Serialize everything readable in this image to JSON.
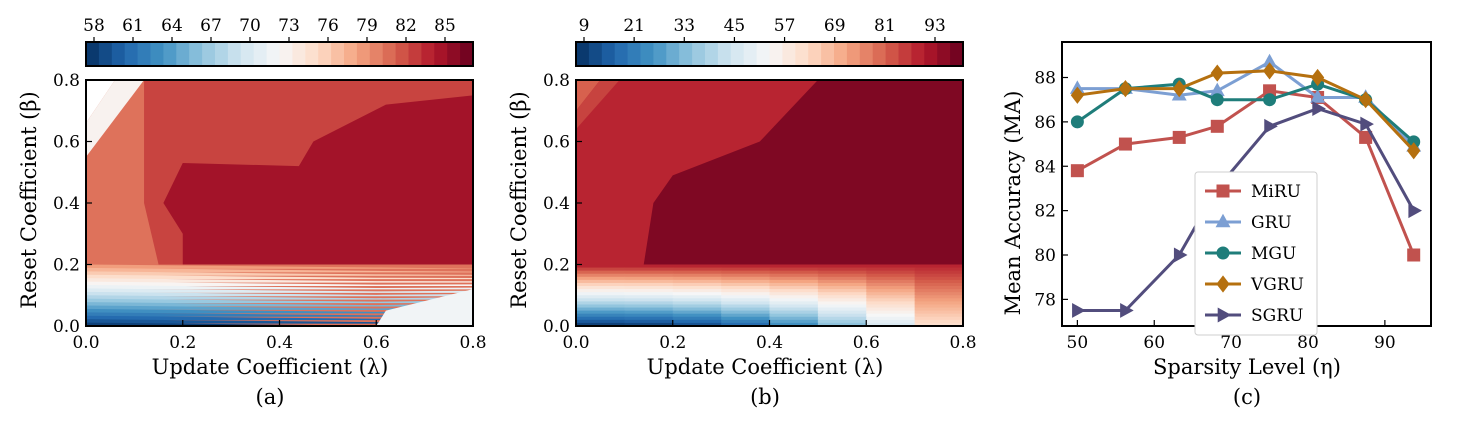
{
  "chart_data": [
    {
      "type": "heatmap",
      "panel": "(a)",
      "xlabel": "Update Coefficient (λ)",
      "ylabel": "Reset Coefficient (β)",
      "xlim": [
        0.0,
        0.8
      ],
      "ylim": [
        0.0,
        0.8
      ],
      "x_ticks": [
        "0.0",
        "0.2",
        "0.4",
        "0.6",
        "0.8"
      ],
      "y_ticks": [
        "0.0",
        "0.2",
        "0.4",
        "0.6",
        "0.8"
      ],
      "colorbar": {
        "ticks": [
          "58",
          "61",
          "64",
          "67",
          "70",
          "73",
          "76",
          "79",
          "82",
          "85"
        ],
        "range": [
          57,
          88
        ],
        "colormap": "RdBu_r"
      },
      "regions": [
        {
          "value": 81,
          "description": "beta 0.25–0.8, outer band"
        },
        {
          "value": 83,
          "description": "plateau"
        },
        {
          "value": 85.5,
          "description": "top-right and central peak"
        },
        {
          "value": 79,
          "description": "beta ~0.2"
        },
        {
          "value": 72,
          "description": "beta ~0.1"
        },
        {
          "value": 58,
          "description": "beta 0, lambda 0–0.6"
        },
        {
          "value": 73,
          "description": "top-left corner"
        }
      ]
    },
    {
      "type": "heatmap",
      "panel": "(b)",
      "xlabel": "Update Coefficient (λ)",
      "ylabel": "Reset Coefficient (β)",
      "xlim": [
        0.0,
        0.8
      ],
      "ylim": [
        0.0,
        0.8
      ],
      "x_ticks": [
        "0.0",
        "0.2",
        "0.4",
        "0.6",
        "0.8"
      ],
      "y_ticks": [
        "0.0",
        "0.2",
        "0.4",
        "0.6",
        "0.8"
      ],
      "colorbar": {
        "ticks": [
          "9",
          "21",
          "33",
          "45",
          "57",
          "69",
          "81",
          "93"
        ],
        "range": [
          5,
          99
        ],
        "colormap": "RdBu_r"
      },
      "regions": [
        {
          "value": 88,
          "description": "beta 0.2–0.8"
        },
        {
          "value": 96,
          "description": "high plateau"
        },
        {
          "value": 8,
          "description": "beta 0, small lambda"
        },
        {
          "value": 60,
          "description": "beta 0, lambda 0.8"
        }
      ]
    },
    {
      "type": "line",
      "panel": "(c)",
      "xlabel": "Sparsity Level (η)",
      "ylabel": "Mean Accuracy (MA)",
      "xlim": [
        48,
        96
      ],
      "ylim": [
        76.8,
        89.6
      ],
      "x_ticks": [
        "50",
        "60",
        "70",
        "80",
        "90"
      ],
      "y_ticks": [
        "78",
        "80",
        "82",
        "84",
        "86",
        "88"
      ],
      "x": [
        50,
        56.25,
        63.25,
        68.2,
        75,
        81.25,
        87.5,
        93.75
      ],
      "legend_position": "lower center",
      "series": [
        {
          "name": "MiRU",
          "marker": "square",
          "color": "#c1524e",
          "values": [
            83.8,
            85.0,
            85.3,
            85.8,
            87.4,
            87.1,
            85.3,
            80.0
          ]
        },
        {
          "name": "GRU",
          "marker": "triangle-up",
          "color": "#7c9fd3",
          "values": [
            87.5,
            87.5,
            87.2,
            87.4,
            88.7,
            87.1,
            87.1,
            84.9
          ]
        },
        {
          "name": "MGU",
          "marker": "circle",
          "color": "#1f7d7a",
          "values": [
            86.0,
            87.5,
            87.7,
            87.0,
            87.0,
            87.7,
            87.0,
            85.1
          ]
        },
        {
          "name": "VGRU",
          "marker": "diamond",
          "color": "#b5700f",
          "values": [
            87.2,
            87.5,
            87.5,
            88.2,
            88.3,
            88.0,
            87.0,
            84.7
          ]
        },
        {
          "name": "SGRU",
          "marker": "triangle-right",
          "color": "#524d7d",
          "values": [
            77.5,
            77.5,
            80.0,
            83.0,
            85.8,
            86.6,
            85.9,
            82.0
          ]
        }
      ]
    }
  ],
  "captions": {
    "a": "(a)",
    "b": "(b)",
    "c": "(c)"
  }
}
